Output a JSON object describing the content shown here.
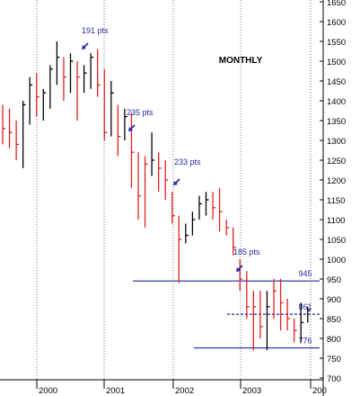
{
  "chart_data": {
    "type": "ohlc",
    "title": "MONTHLY",
    "y_axis": {
      "min": 700,
      "max": 1650,
      "step": 50,
      "position": "right",
      "ticks": [
        1650,
        1600,
        1550,
        1500,
        1450,
        1400,
        1350,
        1300,
        1250,
        1200,
        1150,
        1100,
        1050,
        1000,
        950,
        900,
        850,
        800,
        750,
        700
      ]
    },
    "x_axis": {
      "labels": [
        "2000",
        "2001",
        "2002",
        "2003",
        "200"
      ]
    },
    "grid": "vertical dotted at year boundaries",
    "bar_colors": {
      "up": "#000000",
      "down": "#e02020"
    },
    "bars": [
      {
        "h": 1390,
        "l": 1290,
        "c": 1330,
        "dir": "down"
      },
      {
        "h": 1380,
        "l": 1280,
        "c": 1320,
        "dir": "down"
      },
      {
        "h": 1350,
        "l": 1250,
        "c": 1290,
        "dir": "down"
      },
      {
        "h": 1400,
        "l": 1230,
        "c": 1390,
        "dir": "up"
      },
      {
        "h": 1460,
        "l": 1340,
        "c": 1440,
        "dir": "up"
      },
      {
        "h": 1470,
        "l": 1360,
        "c": 1410,
        "dir": "down"
      },
      {
        "h": 1430,
        "l": 1350,
        "c": 1420,
        "dir": "up"
      },
      {
        "h": 1490,
        "l": 1380,
        "c": 1480,
        "dir": "up"
      },
      {
        "h": 1550,
        "l": 1440,
        "c": 1510,
        "dir": "up"
      },
      {
        "h": 1510,
        "l": 1400,
        "c": 1460,
        "dir": "down"
      },
      {
        "h": 1520,
        "l": 1420,
        "c": 1500,
        "dir": "up"
      },
      {
        "h": 1500,
        "l": 1350,
        "c": 1460,
        "dir": "down"
      },
      {
        "h": 1490,
        "l": 1420,
        "c": 1470,
        "dir": "up"
      },
      {
        "h": 1520,
        "l": 1430,
        "c": 1510,
        "dir": "up"
      },
      {
        "h": 1530,
        "l": 1410,
        "c": 1440,
        "dir": "down"
      },
      {
        "h": 1480,
        "l": 1300,
        "c": 1320,
        "dir": "down"
      },
      {
        "h": 1450,
        "l": 1310,
        "c": 1420,
        "dir": "up"
      },
      {
        "h": 1390,
        "l": 1260,
        "c": 1310,
        "dir": "down"
      },
      {
        "h": 1380,
        "l": 1300,
        "c": 1360,
        "dir": "up"
      },
      {
        "h": 1370,
        "l": 1180,
        "c": 1270,
        "dir": "down"
      },
      {
        "h": 1270,
        "l": 1100,
        "c": 1160,
        "dir": "down"
      },
      {
        "h": 1260,
        "l": 1080,
        "c": 1240,
        "dir": "down"
      },
      {
        "h": 1320,
        "l": 1210,
        "c": 1250,
        "dir": "up"
      },
      {
        "h": 1270,
        "l": 1170,
        "c": 1230,
        "dir": "down"
      },
      {
        "h": 1250,
        "l": 1150,
        "c": 1200,
        "dir": "down"
      },
      {
        "h": 1170,
        "l": 1090,
        "c": 1110,
        "dir": "down"
      },
      {
        "h": 1110,
        "l": 940,
        "c": 1050,
        "dir": "down"
      },
      {
        "h": 1090,
        "l": 1040,
        "c": 1060,
        "dir": "up"
      },
      {
        "h": 1120,
        "l": 1060,
        "c": 1100,
        "dir": "up"
      },
      {
        "h": 1160,
        "l": 1100,
        "c": 1140,
        "dir": "up"
      },
      {
        "h": 1170,
        "l": 1110,
        "c": 1150,
        "dir": "up"
      },
      {
        "h": 1170,
        "l": 1100,
        "c": 1130,
        "dir": "down"
      },
      {
        "h": 1180,
        "l": 1070,
        "c": 1120,
        "dir": "down"
      },
      {
        "h": 1100,
        "l": 1060,
        "c": 1080,
        "dir": "down"
      },
      {
        "h": 1080,
        "l": 1010,
        "c": 1030,
        "dir": "down"
      },
      {
        "h": 1000,
        "l": 920,
        "c": 950,
        "dir": "down"
      },
      {
        "h": 970,
        "l": 850,
        "c": 880,
        "dir": "down"
      },
      {
        "h": 920,
        "l": 770,
        "c": 880,
        "dir": "down"
      },
      {
        "h": 920,
        "l": 800,
        "c": 830,
        "dir": "down"
      },
      {
        "h": 920,
        "l": 770,
        "c": 880,
        "dir": "up"
      },
      {
        "h": 950,
        "l": 850,
        "c": 920,
        "dir": "down"
      },
      {
        "h": 950,
        "l": 820,
        "c": 890,
        "dir": "down"
      },
      {
        "h": 900,
        "l": 820,
        "c": 850,
        "dir": "down"
      },
      {
        "h": 850,
        "l": 790,
        "c": 820,
        "dir": "down"
      },
      {
        "h": 890,
        "l": 790,
        "c": 840,
        "dir": "up"
      },
      {
        "h": 880,
        "l": 840,
        "c": 870,
        "dir": "up"
      }
    ],
    "hlines": [
      {
        "value": 945,
        "label": "945",
        "style": "solid",
        "color": "#1f2aa6"
      },
      {
        "value": 861,
        "label": "861",
        "style": "dashed",
        "color": "#1f2aa6"
      },
      {
        "value": 776,
        "label": "776",
        "style": "solid",
        "color": "#1f2aa6"
      }
    ],
    "annotations": [
      {
        "text": "191 pts"
      },
      {
        "text": "235 pts"
      },
      {
        "text": "233 pts"
      },
      {
        "text": "185 pts"
      }
    ]
  }
}
